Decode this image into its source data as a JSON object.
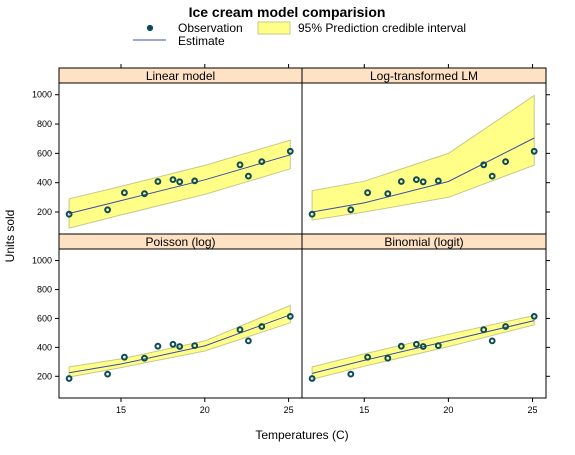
{
  "chart_data": {
    "type": "scatter",
    "title": "Ice cream model comparision",
    "xlabel": "Temperatures (C)",
    "ylabel": "Units sold",
    "xlim": [
      11.3,
      25.8
    ],
    "ylim": [
      50,
      1080
    ],
    "xticks": [
      15,
      20,
      25
    ],
    "yticks": [
      200,
      400,
      600,
      800,
      1000
    ],
    "legend": {
      "placement": "top",
      "items": [
        {
          "label": "Observation",
          "kind": "point",
          "color": "#0c4a5b"
        },
        {
          "label": "Estimate",
          "kind": "line",
          "color": "#3b4ca8"
        },
        {
          "label": "95% Prediction credible interval",
          "kind": "band",
          "color": "#ffff88"
        }
      ]
    },
    "points": {
      "x": [
        11.9,
        14.2,
        15.2,
        16.4,
        17.2,
        18.1,
        18.5,
        19.4,
        22.1,
        22.6,
        23.4,
        25.1
      ],
      "y": [
        185,
        215,
        332,
        325,
        408,
        421,
        406,
        412,
        522,
        445,
        544,
        614
      ]
    },
    "panels": [
      {
        "name": "Linear model",
        "x": [
          11.9,
          15,
          20,
          25.1
        ],
        "estimate": [
          190,
          278,
          420,
          590
        ],
        "lower": [
          90,
          180,
          320,
          495
        ],
        "upper": [
          290,
          375,
          518,
          690
        ]
      },
      {
        "name": "Log-transformed LM",
        "x": [
          11.9,
          15,
          20,
          25.1
        ],
        "estimate": [
          200,
          262,
          408,
          705
        ],
        "lower": [
          145,
          200,
          300,
          520
        ],
        "upper": [
          345,
          410,
          600,
          995
        ]
      },
      {
        "name": "Poisson (log)",
        "x": [
          11.9,
          15,
          20,
          25.1
        ],
        "estimate": [
          225,
          285,
          410,
          625
        ],
        "lower": [
          195,
          260,
          375,
          570
        ],
        "upper": [
          265,
          320,
          445,
          690
        ]
      },
      {
        "name": "Binomial (logit)",
        "x": [
          11.9,
          15,
          20,
          25.1
        ],
        "estimate": [
          220,
          310,
          445,
          585
        ],
        "lower": [
          180,
          270,
          405,
          555
        ],
        "upper": [
          265,
          355,
          490,
          620
        ]
      }
    ]
  }
}
